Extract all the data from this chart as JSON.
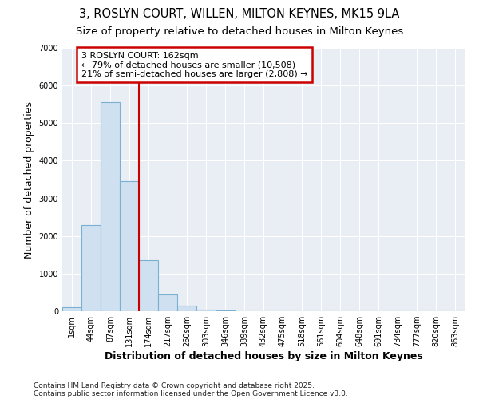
{
  "title1": "3, ROSLYN COURT, WILLEN, MILTON KEYNES, MK15 9LA",
  "title2": "Size of property relative to detached houses in Milton Keynes",
  "xlabel": "Distribution of detached houses by size in Milton Keynes",
  "ylabel": "Number of detached properties",
  "categories": [
    "1sqm",
    "44sqm",
    "87sqm",
    "131sqm",
    "174sqm",
    "217sqm",
    "260sqm",
    "303sqm",
    "346sqm",
    "389sqm",
    "432sqm",
    "475sqm",
    "518sqm",
    "561sqm",
    "604sqm",
    "648sqm",
    "691sqm",
    "734sqm",
    "777sqm",
    "820sqm",
    "863sqm"
  ],
  "values": [
    100,
    2300,
    5550,
    3450,
    1350,
    450,
    150,
    50,
    20,
    0,
    0,
    0,
    0,
    0,
    0,
    0,
    0,
    0,
    0,
    0,
    0
  ],
  "bar_color": "#cfe0f0",
  "bar_edge_color": "#7ab0d0",
  "red_line_x": 4.0,
  "annotation_text": "3 ROSLYN COURT: 162sqm\n← 79% of detached houses are smaller (10,508)\n21% of semi-detached houses are larger (2,808) →",
  "annotation_box_color": "#ffffff",
  "annotation_box_edge": "#cc0000",
  "red_line_color": "#cc0000",
  "ylim": [
    0,
    7000
  ],
  "bg_color": "#e8eef4",
  "footer1": "Contains HM Land Registry data © Crown copyright and database right 2025.",
  "footer2": "Contains public sector information licensed under the Open Government Licence v3.0.",
  "title_fontsize": 10.5,
  "subtitle_fontsize": 9.5,
  "tick_fontsize": 7,
  "label_fontsize": 9,
  "footer_fontsize": 6.5
}
